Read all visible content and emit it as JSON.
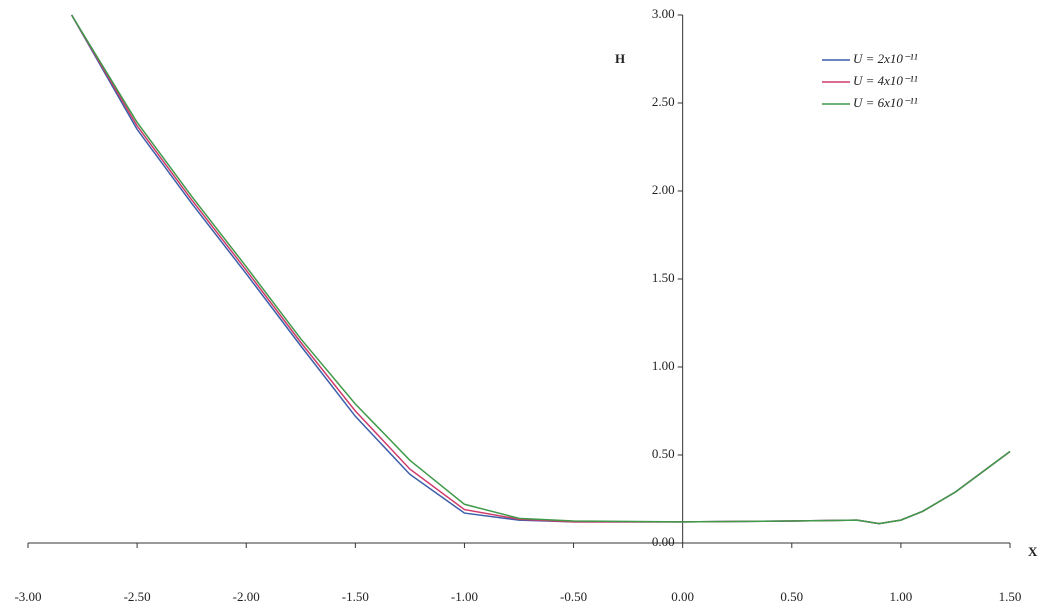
{
  "chart_data": {
    "type": "line",
    "x_label": "X",
    "y_label": "H",
    "x": [
      -2.8,
      -2.5,
      -2.25,
      -2.0,
      -1.75,
      -1.5,
      -1.25,
      -1.0,
      -0.75,
      -0.5,
      0.0,
      0.5,
      0.8,
      0.9,
      1.0,
      1.1,
      1.25,
      1.5
    ],
    "series": [
      {
        "name": "U = 2x10⁻¹¹",
        "color": "#3a5fa8",
        "values": [
          3.0,
          2.35,
          1.93,
          1.53,
          1.12,
          0.72,
          0.39,
          0.17,
          0.13,
          0.12,
          0.12,
          0.125,
          0.13,
          0.11,
          0.13,
          0.18,
          0.29,
          0.52
        ]
      },
      {
        "name": "U = 4x10⁻¹¹",
        "color": "#d03a6a",
        "values": [
          3.0,
          2.37,
          1.95,
          1.55,
          1.14,
          0.75,
          0.42,
          0.19,
          0.135,
          0.12,
          0.12,
          0.125,
          0.13,
          0.11,
          0.13,
          0.18,
          0.29,
          0.52
        ]
      },
      {
        "name": "U = 6x10⁻¹¹",
        "color": "#3f9a4a",
        "values": [
          3.0,
          2.39,
          1.97,
          1.57,
          1.16,
          0.79,
          0.47,
          0.22,
          0.14,
          0.125,
          0.12,
          0.125,
          0.13,
          0.11,
          0.13,
          0.18,
          0.29,
          0.52
        ]
      }
    ],
    "xlim": [
      -3.0,
      1.5
    ],
    "ylim": [
      0.0,
      3.0
    ],
    "xticks": [
      {
        "value": -3.0,
        "label": "-3.00"
      },
      {
        "value": -2.5,
        "label": "-2.50"
      },
      {
        "value": -2.0,
        "label": "-2.00"
      },
      {
        "value": -1.5,
        "label": "-1.50"
      },
      {
        "value": -1.0,
        "label": "-1.00"
      },
      {
        "value": -0.5,
        "label": "-0.50"
      },
      {
        "value": 0.0,
        "label": "0.00"
      },
      {
        "value": 0.5,
        "label": "0.50"
      },
      {
        "value": 1.0,
        "label": "1.00"
      },
      {
        "value": 1.5,
        "label": "1.50"
      }
    ],
    "yticks": [
      {
        "value": 0.0,
        "label": "0.00"
      },
      {
        "value": 0.5,
        "label": "0.50"
      },
      {
        "value": 1.0,
        "label": "1.00"
      },
      {
        "value": 1.5,
        "label": "1.50"
      },
      {
        "value": 2.0,
        "label": "2.00"
      },
      {
        "value": 2.5,
        "label": "2.50"
      },
      {
        "value": 3.0,
        "label": "3.00"
      }
    ],
    "grid": false,
    "legend": "top-right"
  }
}
